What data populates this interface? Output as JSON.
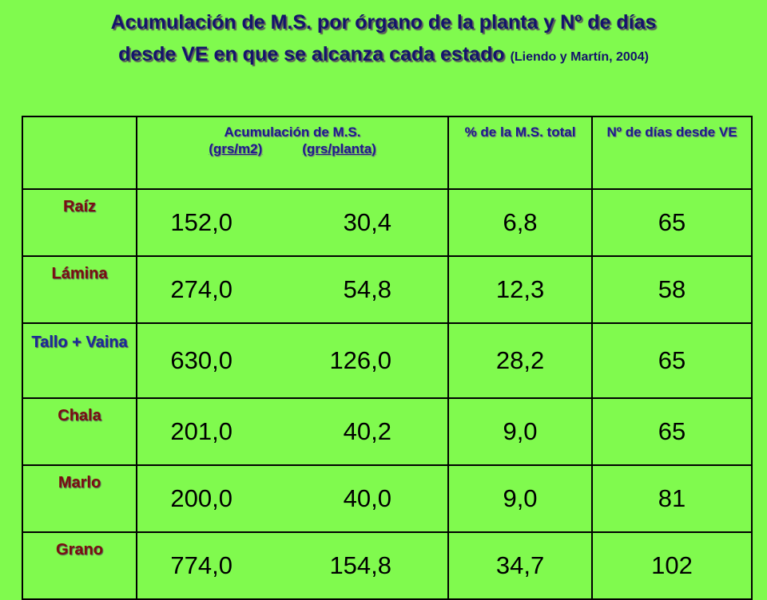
{
  "header": {
    "title_line1": "Acumulación de M.S. por órgano de la planta y Nº de días",
    "title_line2": "desde VE en que se alcanza cada estado",
    "citation": "(Liendo y Martín, 2004)"
  },
  "table": {
    "columns": {
      "accumulation": "Acumulación de M.S.",
      "units_area": "(grs/m2)",
      "units_plant": "(grs/planta)",
      "percent": "% de la M.S. total",
      "days": "Nº de días desde VE"
    },
    "rows": [
      [
        "Raíz",
        "152,0",
        "30,4",
        "6,8",
        "65"
      ],
      [
        "Lámina",
        "274,0",
        "54,8",
        "12,3",
        "58"
      ],
      [
        "Tallo + Vaina",
        "630,0",
        "126,0",
        "28,2",
        "65"
      ],
      [
        "Chala",
        "201,0",
        "40,2",
        "9,0",
        "65"
      ],
      [
        "Marlo",
        "200,0",
        "40,0",
        "9,0",
        "81"
      ],
      [
        "Grano",
        "774,0",
        "154,8",
        "34,7",
        "102"
      ]
    ]
  }
}
